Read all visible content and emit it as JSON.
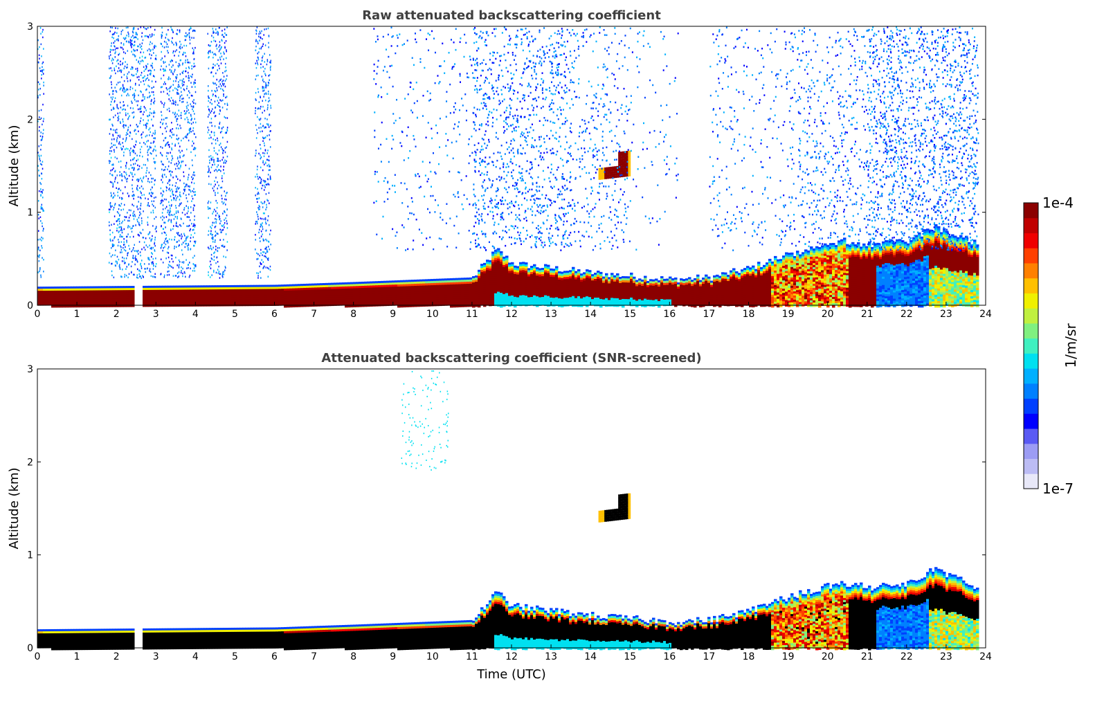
{
  "chart_data": [
    {
      "type": "heatmap",
      "title": "Raw attenuated backscattering coefficient",
      "xlabel": "",
      "ylabel": "Altitude (km)",
      "xlim": [
        0,
        24
      ],
      "ylim": [
        0,
        3
      ],
      "xticks": [
        "0",
        "1",
        "2",
        "3",
        "4",
        "5",
        "6",
        "7",
        "8",
        "9",
        "10",
        "11",
        "12",
        "13",
        "14",
        "15",
        "16",
        "17",
        "18",
        "19",
        "20",
        "21",
        "22",
        "23",
        "24"
      ],
      "yticks": [
        "0",
        "1",
        "2",
        "3"
      ],
      "grid": false,
      "layers": [
        {
          "name": "boundary-layer-aerosol",
          "top_km": [
            [
              0,
              0.2
            ],
            [
              6,
              0.22
            ],
            [
              8,
              0.25
            ],
            [
              11,
              0.3
            ],
            [
              11.6,
              0.6
            ],
            [
              12,
              0.45
            ],
            [
              14,
              0.35
            ],
            [
              16,
              0.28
            ],
            [
              17,
              0.3
            ],
            [
              18,
              0.4
            ],
            [
              19,
              0.55
            ],
            [
              20.3,
              0.7
            ],
            [
              21,
              0.65
            ],
            [
              22,
              0.7
            ],
            [
              22.7,
              0.85
            ],
            [
              23.8,
              0.65
            ]
          ],
          "level": "1e-4"
        },
        {
          "name": "cloud-layer",
          "t_start": 14.2,
          "t_end": 15.0,
          "alt_km": [
            1.35,
            1.65
          ],
          "level": "1e-4"
        },
        {
          "name": "noise-columns",
          "t_ranges": [
            [
              0,
              0.15
            ],
            [
              1.8,
              3.0
            ],
            [
              3.1,
              4.0
            ],
            [
              4.3,
              4.8
            ],
            [
              5.5,
              5.9
            ]
          ],
          "alt_km": [
            0.3,
            3.0
          ],
          "level": "1e-6"
        }
      ]
    },
    {
      "type": "heatmap",
      "title": "Attenuated backscattering coefficient (SNR-screened)",
      "xlabel": "Time (UTC)",
      "ylabel": "Altitude (km)",
      "xlim": [
        0,
        24
      ],
      "ylim": [
        0,
        3
      ],
      "xticks": [
        "0",
        "1",
        "2",
        "3",
        "4",
        "5",
        "6",
        "7",
        "8",
        "9",
        "10",
        "11",
        "12",
        "13",
        "14",
        "15",
        "16",
        "17",
        "18",
        "19",
        "20",
        "21",
        "22",
        "23",
        "24"
      ],
      "yticks": [
        "0",
        "1",
        "2",
        "3"
      ],
      "grid": false,
      "layers": [
        {
          "name": "boundary-layer-aerosol",
          "top_km": [
            [
              0,
              0.2
            ],
            [
              6,
              0.22
            ],
            [
              8,
              0.25
            ],
            [
              11,
              0.3
            ],
            [
              11.6,
              0.6
            ],
            [
              12,
              0.45
            ],
            [
              14,
              0.35
            ],
            [
              16,
              0.28
            ],
            [
              17,
              0.3
            ],
            [
              18,
              0.4
            ],
            [
              19,
              0.55
            ],
            [
              20.3,
              0.7
            ],
            [
              21,
              0.65
            ],
            [
              22,
              0.7
            ],
            [
              22.7,
              0.85
            ],
            [
              23.8,
              0.65
            ]
          ],
          "level": "above 1e-4"
        },
        {
          "name": "cloud-layer",
          "t_start": 14.2,
          "t_end": 15.0,
          "alt_km": [
            1.35,
            1.65
          ],
          "level": "above 1e-4"
        }
      ]
    }
  ],
  "colorbar": {
    "label": "1/m/sr",
    "max_label": "1e-4",
    "min_label": "1e-7",
    "colors": [
      "#e8e8f8",
      "#bcbcf4",
      "#9c9cf4",
      "#5a5af4",
      "#0000ff",
      "#0040ff",
      "#0080ff",
      "#00b0ff",
      "#00e0f0",
      "#40f0c0",
      "#80f080",
      "#c0f040",
      "#f0f000",
      "#ffc000",
      "#ff8000",
      "#ff4000",
      "#f00000",
      "#c00000",
      "#8b0000"
    ]
  },
  "colors": {
    "screened_saturation": "#000000",
    "background": "#ffffff",
    "axis_text": "#404040"
  }
}
